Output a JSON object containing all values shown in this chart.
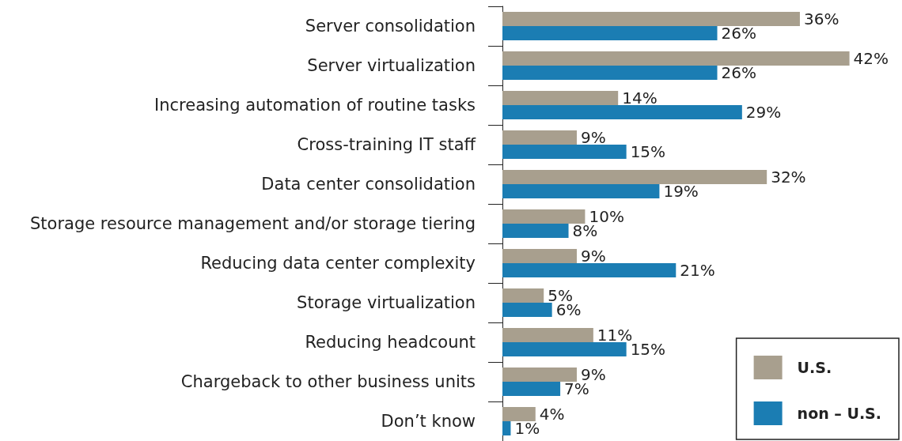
{
  "chart_data": {
    "type": "bar",
    "orientation": "horizontal",
    "legend": "bottom right",
    "categories": [
      "Server consolidation",
      "Server virtualization",
      "Increasing automation of routine tasks",
      "Cross-training IT staff",
      "Data center consolidation",
      "Storage resource management and/or storage tiering",
      "Reducing data center complexity",
      "Storage virtualization",
      "Reducing headcount",
      "Chargeback to other business units",
      "Don’t know"
    ],
    "series": [
      {
        "name": "U.S.",
        "color": "#a89f8e",
        "values": [
          36,
          42,
          14,
          9,
          32,
          10,
          9,
          5,
          11,
          9,
          4
        ],
        "value_labels": [
          "36%",
          "42%",
          "14%",
          "9%",
          "32%",
          "10%",
          "9%",
          "5%",
          "11%",
          "9%",
          "4%"
        ]
      },
      {
        "name": "non – U.S.",
        "color": "#1b7db3",
        "values": [
          26,
          26,
          29,
          15,
          19,
          8,
          21,
          6,
          15,
          7,
          1
        ],
        "value_labels": [
          "26%",
          "26%",
          "29%",
          "15%",
          "19%",
          "8%",
          "21%",
          "6%",
          "15%",
          "7%",
          "1%"
        ]
      }
    ]
  }
}
